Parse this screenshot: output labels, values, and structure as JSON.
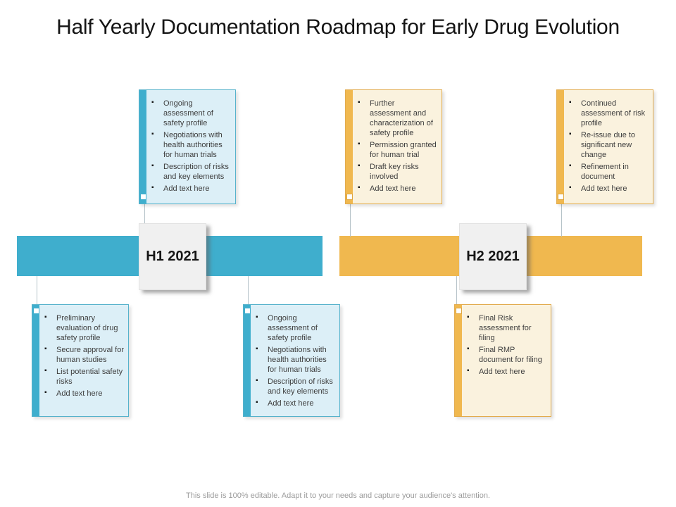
{
  "slide": {
    "title": "Half Yearly Documentation Roadmap for Early Drug Evolution",
    "footer": "This slide is 100% editable. Adapt it to your needs and capture your audience's attention."
  },
  "timeline": {
    "h1": {
      "label": "H1 2021"
    },
    "h2": {
      "label": "H2 2021"
    }
  },
  "callouts": [
    {
      "id": "h1-above",
      "theme": "blue",
      "position": "above",
      "items": [
        "Ongoing assessment of safety profile",
        "Negotiations with health authorities for human trials",
        "Description of risks and key elements",
        "Add text here"
      ]
    },
    {
      "id": "h2-above-1",
      "theme": "orange",
      "position": "above",
      "items": [
        "Further assessment and characterization of safety profile",
        "Permission granted for human trial",
        "Draft key risks involved",
        "Add text here"
      ]
    },
    {
      "id": "h2-above-2",
      "theme": "orange",
      "position": "above",
      "items": [
        "Continued assessment of risk profile",
        "Re-issue due to significant new change",
        "Refinement in document",
        "Add text here"
      ]
    },
    {
      "id": "h1-below-1",
      "theme": "blue",
      "position": "below",
      "items": [
        "Preliminary evaluation of drug safety profile",
        "Secure approval for human studies",
        "List potential safety risks",
        "Add text here"
      ]
    },
    {
      "id": "h1-below-2",
      "theme": "blue",
      "position": "below",
      "items": [
        "Ongoing assessment of safety profile",
        "Negotiations with health authorities for human trials",
        "Description of risks and key elements",
        "Add text here"
      ]
    },
    {
      "id": "h2-below",
      "theme": "orange",
      "position": "below",
      "items": [
        "Final Risk assessment for filing",
        "Final RMP document for filing",
        "Add text here"
      ]
    }
  ],
  "colors": {
    "h1_bar": "#3FAECD",
    "h2_bar": "#F0B84F",
    "blue_box_fill": "#DCEFF7",
    "blue_box_border": "#56B2CB",
    "orange_box_fill": "#FAF2DE",
    "orange_box_border": "#E2AB4D",
    "period_box_fill": "#F0F0F0",
    "body_text": "#3E3E3E",
    "footer_text": "#9B9B9B"
  }
}
